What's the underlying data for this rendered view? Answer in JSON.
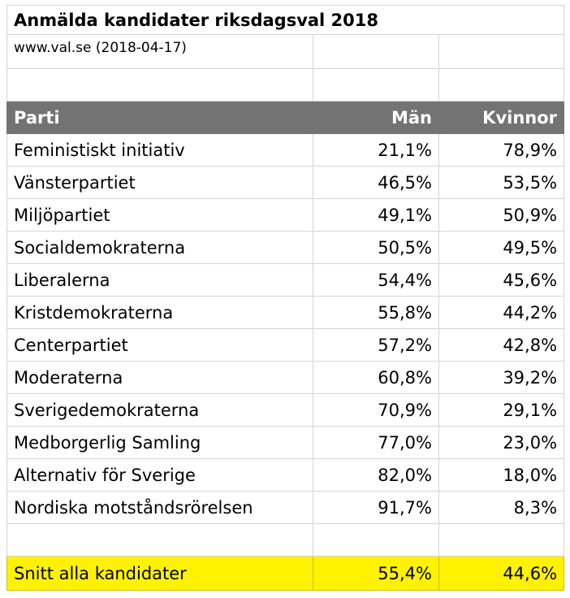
{
  "title": "Anmälda kandidater riksdagsval 2018",
  "source": "www.val.se (2018-04-17)",
  "headers": {
    "party": "Parti",
    "men": "Män",
    "women": "Kvinnor"
  },
  "rows": [
    {
      "party": "Feministiskt initiativ",
      "men": "21,1%",
      "women": "78,9%"
    },
    {
      "party": "Vänsterpartiet",
      "men": "46,5%",
      "women": "53,5%"
    },
    {
      "party": "Miljöpartiet",
      "men": "49,1%",
      "women": "50,9%"
    },
    {
      "party": "Socialdemokraterna",
      "men": "50,5%",
      "women": "49,5%"
    },
    {
      "party": "Liberalerna",
      "men": "54,4%",
      "women": "45,6%"
    },
    {
      "party": "Kristdemokraterna",
      "men": "55,8%",
      "women": "44,2%"
    },
    {
      "party": "Centerpartiet",
      "men": "57,2%",
      "women": "42,8%"
    },
    {
      "party": "Moderaterna",
      "men": "60,8%",
      "women": "39,2%"
    },
    {
      "party": "Sverigedemokraterna",
      "men": "70,9%",
      "women": "29,1%"
    },
    {
      "party": "Medborgerlig Samling",
      "men": "77,0%",
      "women": "23,0%"
    },
    {
      "party": "Alternativ för Sverige",
      "men": "82,0%",
      "women": "18,0%"
    },
    {
      "party": "Nordiska motståndsrörelsen",
      "men": "91,7%",
      "women": "8,3%"
    }
  ],
  "average": {
    "label": "Snitt alla kandidater",
    "men": "55,4%",
    "women": "44,6%"
  },
  "colors": {
    "header_bg": "#737373",
    "header_text": "#ffffff",
    "highlight": "#fff200",
    "grid": "#d4d4d4"
  }
}
